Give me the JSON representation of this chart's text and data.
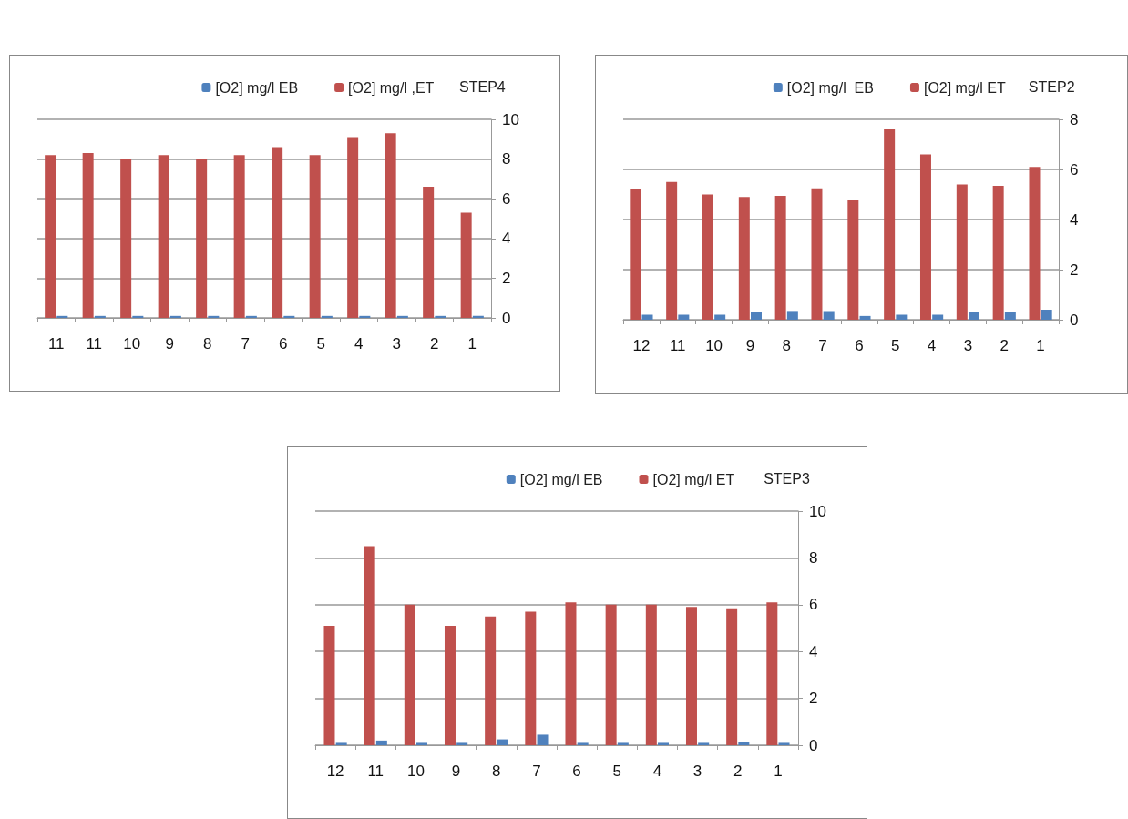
{
  "chart_data": [
    {
      "type": "bar",
      "title": "STEP4",
      "categories": [
        "11",
        "11",
        "10",
        "9",
        "8",
        "7",
        "6",
        "5",
        "4",
        "3",
        "2",
        "1"
      ],
      "series": [
        {
          "name": "[O2] mg/l EB",
          "color": "#4f81bd",
          "values": [
            0.1,
            0.1,
            0.1,
            0.1,
            0.1,
            0.1,
            0.1,
            0.1,
            0.1,
            0.1,
            0.1,
            0.1
          ]
        },
        {
          "name": "[O2] mg/l ,ET",
          "color": "#c0504d",
          "values": [
            8.2,
            8.3,
            8.0,
            8.2,
            8.0,
            8.2,
            8.6,
            8.2,
            9.1,
            9.3,
            6.6,
            5.3
          ]
        }
      ],
      "ylim": [
        0,
        10
      ],
      "yticks": [
        0,
        2,
        4,
        6,
        8,
        10
      ],
      "grid": "y",
      "legend": "top"
    },
    {
      "type": "bar",
      "title": "STEP2",
      "categories": [
        "12",
        "11",
        "10",
        "9",
        "8",
        "7",
        "6",
        "5",
        "4",
        "3",
        "2",
        "1"
      ],
      "series": [
        {
          "name": "[O2] mg/l  EB",
          "color": "#4f81bd",
          "values": [
            0.2,
            0.2,
            0.2,
            0.3,
            0.35,
            0.35,
            0.15,
            0.2,
            0.2,
            0.3,
            0.3,
            0.4
          ]
        },
        {
          "name": "[O2] mg/l ET",
          "color": "#c0504d",
          "values": [
            5.2,
            5.5,
            5.0,
            4.9,
            4.95,
            5.25,
            4.8,
            7.6,
            6.6,
            5.4,
            5.35,
            6.1
          ]
        }
      ],
      "ylim": [
        0,
        8
      ],
      "yticks": [
        0,
        2,
        4,
        6,
        8
      ],
      "grid": "y",
      "legend": "top"
    },
    {
      "type": "bar",
      "title": "STEP3",
      "categories": [
        "12",
        "11",
        "10",
        "9",
        "8",
        "7",
        "6",
        "5",
        "4",
        "3",
        "2",
        "1"
      ],
      "series": [
        {
          "name": "[O2] mg/l EB",
          "color": "#4f81bd",
          "values": [
            0.1,
            0.2,
            0.1,
            0.1,
            0.25,
            0.45,
            0.1,
            0.1,
            0.1,
            0.1,
            0.15,
            0.1
          ]
        },
        {
          "name": "[O2] mg/l ET",
          "color": "#c0504d",
          "values": [
            5.1,
            8.5,
            6.0,
            5.1,
            5.5,
            5.7,
            6.1,
            6.0,
            6.0,
            5.9,
            5.85,
            6.1
          ]
        }
      ],
      "ylim": [
        0,
        10
      ],
      "yticks": [
        0,
        2,
        4,
        6,
        8,
        10
      ],
      "grid": "y",
      "legend": "top"
    }
  ]
}
